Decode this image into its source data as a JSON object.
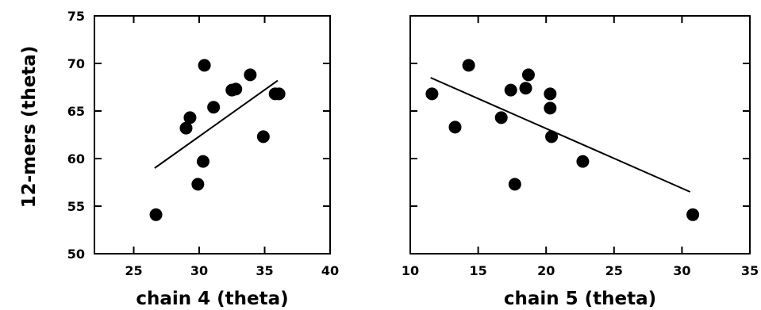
{
  "chart_data": {
    "type": "scatter",
    "ylabel": "12-mers (theta)",
    "ylim": [
      50,
      75
    ],
    "yticks": [
      50,
      55,
      60,
      65,
      70,
      75
    ],
    "panels": [
      {
        "xlabel": "chain 4 (theta)",
        "xlim": [
          22,
          40
        ],
        "xticks": [
          25,
          30,
          35,
          40
        ],
        "points": [
          {
            "x": 26.7,
            "y": 54.1
          },
          {
            "x": 29.0,
            "y": 63.2
          },
          {
            "x": 29.3,
            "y": 64.3
          },
          {
            "x": 29.9,
            "y": 57.3
          },
          {
            "x": 30.3,
            "y": 59.7
          },
          {
            "x": 30.4,
            "y": 69.8
          },
          {
            "x": 31.1,
            "y": 65.4
          },
          {
            "x": 32.5,
            "y": 67.2
          },
          {
            "x": 32.8,
            "y": 67.3
          },
          {
            "x": 33.9,
            "y": 68.8
          },
          {
            "x": 34.9,
            "y": 62.3
          },
          {
            "x": 35.8,
            "y": 66.8
          },
          {
            "x": 36.1,
            "y": 66.8
          }
        ],
        "fit_line": {
          "x": [
            26.6,
            36.0
          ],
          "y": [
            59.0,
            68.2
          ]
        }
      },
      {
        "xlabel": "chain 5 (theta)",
        "xlim": [
          10,
          35
        ],
        "xticks": [
          10,
          15,
          20,
          25,
          30,
          35
        ],
        "points": [
          {
            "x": 11.6,
            "y": 66.8
          },
          {
            "x": 13.3,
            "y": 63.3
          },
          {
            "x": 14.3,
            "y": 69.8
          },
          {
            "x": 16.7,
            "y": 64.3
          },
          {
            "x": 17.4,
            "y": 67.2
          },
          {
            "x": 17.7,
            "y": 57.3
          },
          {
            "x": 18.5,
            "y": 67.4
          },
          {
            "x": 18.7,
            "y": 68.8
          },
          {
            "x": 20.3,
            "y": 66.8
          },
          {
            "x": 20.3,
            "y": 65.3
          },
          {
            "x": 20.4,
            "y": 62.3
          },
          {
            "x": 22.7,
            "y": 59.7
          },
          {
            "x": 30.8,
            "y": 54.1
          }
        ],
        "fit_line": {
          "x": [
            11.5,
            30.6
          ],
          "y": [
            68.5,
            56.5
          ]
        }
      }
    ]
  }
}
